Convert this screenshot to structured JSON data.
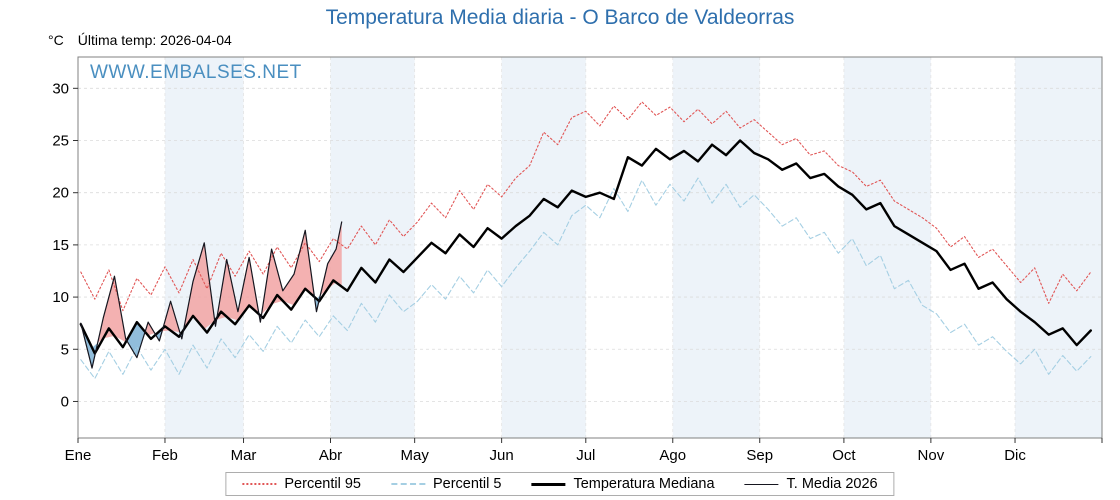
{
  "page": {
    "title": "Temperatura Media diaria - O Barco de Valdeorras",
    "y_unit": "°C",
    "last_temp_label": "Última temp: 2026-04-04",
    "watermark": "WWW.EMBALSES.NET"
  },
  "colors": {
    "title": "#2e6fad",
    "watermark": "#4a8fc0",
    "band": "#edf3f9",
    "grid": "#dcdcdc",
    "axis_border": "#808080"
  },
  "chart_data": {
    "type": "line",
    "title": "Temperatura Media diaria - O Barco de Valdeorras",
    "xlabel": "",
    "ylabel": "°C",
    "ylim": [
      -3.5,
      33
    ],
    "yticks": [
      0,
      5,
      10,
      15,
      20,
      25,
      30
    ],
    "x_unit": "day_of_year",
    "grid": true,
    "legend_position": "bottom",
    "month_labels": [
      "Ene",
      "Feb",
      "Mar",
      "Abr",
      "May",
      "Jun",
      "Jul",
      "Ago",
      "Sep",
      "Oct",
      "Nov",
      "Dic"
    ],
    "month_start_days": [
      0,
      31,
      59,
      90,
      120,
      151,
      181,
      212,
      243,
      273,
      304,
      334,
      365
    ],
    "series": [
      {
        "name": "Percentil 95",
        "style": "dotted",
        "color": "#e15656",
        "x": [
          1,
          6,
          11,
          16,
          21,
          26,
          31,
          36,
          41,
          46,
          51,
          56,
          61,
          66,
          71,
          76,
          81,
          86,
          91,
          96,
          101,
          106,
          111,
          116,
          121,
          126,
          131,
          136,
          141,
          146,
          151,
          156,
          161,
          166,
          171,
          176,
          181,
          186,
          191,
          196,
          201,
          206,
          211,
          216,
          221,
          226,
          231,
          236,
          241,
          246,
          251,
          256,
          261,
          266,
          271,
          276,
          281,
          286,
          291,
          296,
          301,
          306,
          311,
          316,
          321,
          326,
          331,
          336,
          341,
          346,
          351,
          356,
          361
        ],
        "values": [
          12.4,
          9.8,
          12.6,
          8.7,
          11.8,
          10.2,
          12.9,
          10.4,
          13.6,
          10.8,
          14.2,
          12.0,
          14.4,
          12.2,
          14.8,
          12.8,
          15.2,
          13.4,
          15.6,
          14.6,
          16.8,
          15.0,
          17.4,
          15.8,
          17.2,
          19.0,
          17.6,
          20.2,
          18.4,
          20.8,
          19.6,
          21.4,
          22.6,
          25.8,
          24.6,
          27.2,
          27.8,
          26.4,
          28.3,
          27.0,
          28.7,
          27.4,
          28.2,
          26.8,
          28.0,
          26.6,
          27.8,
          26.2,
          27.0,
          25.8,
          24.6,
          25.2,
          23.6,
          24.0,
          22.6,
          22.0,
          20.6,
          21.2,
          19.2,
          18.4,
          17.6,
          16.6,
          14.8,
          15.8,
          13.8,
          14.6,
          13.0,
          11.4,
          12.8,
          9.4,
          12.2,
          10.6,
          12.4
        ]
      },
      {
        "name": "Percentil 5",
        "style": "dashed",
        "color": "#a5cfe3",
        "x": [
          1,
          6,
          11,
          16,
          21,
          26,
          31,
          36,
          41,
          46,
          51,
          56,
          61,
          66,
          71,
          76,
          81,
          86,
          91,
          96,
          101,
          106,
          111,
          116,
          121,
          126,
          131,
          136,
          141,
          146,
          151,
          156,
          161,
          166,
          171,
          176,
          181,
          186,
          191,
          196,
          201,
          206,
          211,
          216,
          221,
          226,
          231,
          236,
          241,
          246,
          251,
          256,
          261,
          266,
          271,
          276,
          281,
          286,
          291,
          296,
          301,
          306,
          311,
          316,
          321,
          326,
          331,
          336,
          341,
          346,
          351,
          356,
          361
        ],
        "values": [
          4.0,
          2.2,
          4.8,
          2.6,
          5.2,
          3.0,
          5.0,
          2.6,
          5.4,
          3.2,
          6.0,
          4.2,
          6.4,
          4.8,
          7.2,
          5.6,
          7.8,
          6.2,
          8.2,
          6.8,
          9.4,
          7.6,
          10.2,
          8.6,
          9.6,
          11.2,
          9.8,
          12.0,
          10.4,
          12.6,
          11.0,
          12.8,
          14.4,
          16.2,
          15.0,
          17.8,
          18.8,
          17.6,
          20.4,
          18.2,
          21.2,
          18.8,
          20.8,
          19.2,
          21.4,
          19.0,
          20.8,
          18.6,
          19.8,
          18.4,
          16.8,
          17.6,
          15.6,
          16.2,
          14.2,
          15.6,
          13.0,
          14.0,
          10.8,
          11.6,
          9.2,
          8.4,
          6.6,
          7.4,
          5.4,
          6.2,
          4.8,
          3.6,
          5.0,
          2.6,
          4.4,
          2.9,
          4.3
        ]
      },
      {
        "name": "Temperatura Mediana",
        "style": "solid-thick",
        "color": "#000000",
        "x": [
          1,
          6,
          11,
          16,
          21,
          26,
          31,
          36,
          41,
          46,
          51,
          56,
          61,
          66,
          71,
          76,
          81,
          86,
          91,
          96,
          101,
          106,
          111,
          116,
          121,
          126,
          131,
          136,
          141,
          146,
          151,
          156,
          161,
          166,
          171,
          176,
          181,
          186,
          191,
          196,
          201,
          206,
          211,
          216,
          221,
          226,
          231,
          236,
          241,
          246,
          251,
          256,
          261,
          266,
          271,
          276,
          281,
          286,
          291,
          296,
          301,
          306,
          311,
          316,
          321,
          326,
          331,
          336,
          341,
          346,
          351,
          356,
          361
        ],
        "values": [
          7.4,
          4.6,
          7.0,
          5.2,
          7.6,
          6.0,
          7.2,
          6.2,
          8.2,
          6.6,
          8.6,
          7.4,
          9.2,
          8.0,
          10.2,
          8.8,
          10.8,
          9.6,
          11.6,
          10.6,
          12.8,
          11.4,
          13.6,
          12.4,
          13.8,
          15.2,
          14.2,
          16.0,
          14.8,
          16.6,
          15.6,
          16.8,
          17.8,
          19.4,
          18.6,
          20.2,
          19.6,
          20.0,
          19.4,
          23.4,
          22.6,
          24.2,
          23.2,
          24.0,
          23.0,
          24.6,
          23.6,
          25.0,
          23.8,
          23.2,
          22.2,
          22.8,
          21.4,
          21.8,
          20.6,
          19.8,
          18.4,
          19.0,
          16.8,
          16.0,
          15.2,
          14.4,
          12.6,
          13.2,
          10.8,
          11.4,
          9.8,
          8.6,
          7.6,
          6.4,
          7.0,
          5.4,
          6.8
        ]
      },
      {
        "name": "T. Media 2026",
        "style": "solid-thin",
        "color": "#16161f",
        "fill_above": "#f2a3a3",
        "fill_below": "#7eb1d5",
        "fill_vs": "Temperatura Mediana",
        "x": [
          1,
          5,
          9,
          13,
          17,
          21,
          25,
          29,
          33,
          37,
          41,
          45,
          49,
          53,
          57,
          61,
          65,
          69,
          73,
          77,
          81,
          85,
          89,
          92,
          94
        ],
        "values": [
          7.5,
          3.2,
          8.0,
          12.0,
          6.0,
          4.2,
          7.6,
          5.8,
          9.6,
          6.0,
          11.5,
          15.2,
          7.2,
          13.6,
          8.6,
          13.8,
          7.6,
          14.6,
          10.6,
          12.2,
          16.4,
          8.6,
          13.2,
          14.6,
          17.2
        ]
      }
    ]
  }
}
